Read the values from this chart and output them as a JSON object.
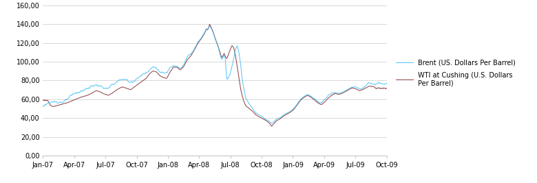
{
  "ylim": [
    0,
    160
  ],
  "yticks": [
    0,
    20,
    40,
    60,
    80,
    100,
    120,
    140,
    160
  ],
  "ytick_labels": [
    "0,00",
    "20,00",
    "40,00",
    "60,00",
    "80,00",
    "100,00",
    "120,00",
    "140,00",
    "160,00"
  ],
  "xtick_labels": [
    "Jan-07",
    "Apr-07",
    "Jul-07",
    "Oct-07",
    "Jan-08",
    "Apr-08",
    "Jul-08",
    "Oct-08",
    "Jan-09",
    "Apr-09",
    "Jul-09",
    "Oct-09"
  ],
  "brent_color": "#4FC3F7",
  "wti_color": "#8B3A3A",
  "background_color": "#FFFFFF",
  "legend_brent": "Brent (US. Dollars Per Barrel)",
  "legend_wti": "WTI at Cushing (U.S. Dollars\nPer Barrel)",
  "waypoints_brent": [
    [
      0.0,
      52
    ],
    [
      0.015,
      57
    ],
    [
      0.03,
      55
    ],
    [
      0.05,
      58
    ],
    [
      0.07,
      60
    ],
    [
      0.09,
      63
    ],
    [
      0.11,
      67
    ],
    [
      0.13,
      70
    ],
    [
      0.145,
      73
    ],
    [
      0.155,
      74
    ],
    [
      0.165,
      73
    ],
    [
      0.175,
      71
    ],
    [
      0.19,
      69
    ],
    [
      0.2,
      72
    ],
    [
      0.215,
      76
    ],
    [
      0.23,
      79
    ],
    [
      0.24,
      78
    ],
    [
      0.255,
      76
    ],
    [
      0.27,
      80
    ],
    [
      0.285,
      84
    ],
    [
      0.3,
      88
    ],
    [
      0.31,
      93
    ],
    [
      0.32,
      96
    ],
    [
      0.33,
      95
    ],
    [
      0.34,
      91
    ],
    [
      0.35,
      89
    ],
    [
      0.36,
      88
    ],
    [
      0.37,
      95
    ],
    [
      0.38,
      100
    ],
    [
      0.39,
      100
    ],
    [
      0.4,
      97
    ],
    [
      0.41,
      101
    ],
    [
      0.42,
      108
    ],
    [
      0.43,
      112
    ],
    [
      0.44,
      118
    ],
    [
      0.45,
      125
    ],
    [
      0.46,
      130
    ],
    [
      0.465,
      133
    ],
    [
      0.47,
      136
    ],
    [
      0.475,
      140
    ],
    [
      0.48,
      140
    ],
    [
      0.485,
      143
    ],
    [
      0.49,
      140
    ],
    [
      0.495,
      136
    ],
    [
      0.5,
      130
    ],
    [
      0.505,
      125
    ],
    [
      0.51,
      120
    ],
    [
      0.515,
      113
    ],
    [
      0.52,
      107
    ],
    [
      0.525,
      110
    ],
    [
      0.527,
      112
    ],
    [
      0.53,
      109
    ],
    [
      0.535,
      86
    ],
    [
      0.54,
      88
    ],
    [
      0.545,
      92
    ],
    [
      0.55,
      100
    ],
    [
      0.555,
      108
    ],
    [
      0.56,
      118
    ],
    [
      0.565,
      122
    ],
    [
      0.57,
      115
    ],
    [
      0.575,
      103
    ],
    [
      0.58,
      85
    ],
    [
      0.585,
      75
    ],
    [
      0.59,
      66
    ],
    [
      0.6,
      60
    ],
    [
      0.61,
      55
    ],
    [
      0.62,
      50
    ],
    [
      0.63,
      48
    ],
    [
      0.64,
      46
    ],
    [
      0.645,
      44
    ],
    [
      0.65,
      43
    ],
    [
      0.66,
      41
    ],
    [
      0.665,
      39
    ],
    [
      0.67,
      40
    ],
    [
      0.675,
      42
    ],
    [
      0.68,
      44
    ],
    [
      0.69,
      45
    ],
    [
      0.7,
      48
    ],
    [
      0.71,
      50
    ],
    [
      0.72,
      52
    ],
    [
      0.73,
      55
    ],
    [
      0.74,
      60
    ],
    [
      0.75,
      65
    ],
    [
      0.76,
      68
    ],
    [
      0.77,
      70
    ],
    [
      0.775,
      69
    ],
    [
      0.78,
      68
    ],
    [
      0.79,
      65
    ],
    [
      0.8,
      62
    ],
    [
      0.81,
      60
    ],
    [
      0.82,
      63
    ],
    [
      0.83,
      67
    ],
    [
      0.84,
      70
    ],
    [
      0.85,
      72
    ],
    [
      0.86,
      71
    ],
    [
      0.87,
      72
    ],
    [
      0.88,
      74
    ],
    [
      0.89,
      76
    ],
    [
      0.9,
      78
    ],
    [
      0.91,
      77
    ],
    [
      0.92,
      75
    ],
    [
      0.93,
      76
    ],
    [
      0.94,
      78
    ],
    [
      0.95,
      80
    ],
    [
      0.96,
      79
    ],
    [
      0.97,
      78
    ],
    [
      0.98,
      78
    ],
    [
      1.0,
      77
    ]
  ],
  "waypoints_wti": [
    [
      0.0,
      59
    ],
    [
      0.015,
      59
    ],
    [
      0.03,
      57
    ],
    [
      0.05,
      59
    ],
    [
      0.07,
      61
    ],
    [
      0.09,
      64
    ],
    [
      0.11,
      67
    ],
    [
      0.13,
      69
    ],
    [
      0.145,
      72
    ],
    [
      0.155,
      74
    ],
    [
      0.165,
      73
    ],
    [
      0.175,
      71
    ],
    [
      0.19,
      69
    ],
    [
      0.2,
      71
    ],
    [
      0.215,
      75
    ],
    [
      0.23,
      78
    ],
    [
      0.24,
      77
    ],
    [
      0.255,
      75
    ],
    [
      0.27,
      79
    ],
    [
      0.285,
      83
    ],
    [
      0.3,
      87
    ],
    [
      0.31,
      92
    ],
    [
      0.32,
      95
    ],
    [
      0.33,
      94
    ],
    [
      0.34,
      90
    ],
    [
      0.35,
      88
    ],
    [
      0.36,
      87
    ],
    [
      0.37,
      94
    ],
    [
      0.38,
      99
    ],
    [
      0.39,
      99
    ],
    [
      0.4,
      96
    ],
    [
      0.41,
      100
    ],
    [
      0.42,
      107
    ],
    [
      0.43,
      111
    ],
    [
      0.44,
      117
    ],
    [
      0.45,
      124
    ],
    [
      0.46,
      129
    ],
    [
      0.465,
      132
    ],
    [
      0.47,
      135
    ],
    [
      0.475,
      139
    ],
    [
      0.48,
      139
    ],
    [
      0.485,
      145
    ],
    [
      0.49,
      141
    ],
    [
      0.495,
      137
    ],
    [
      0.5,
      131
    ],
    [
      0.505,
      126
    ],
    [
      0.51,
      121
    ],
    [
      0.515,
      115
    ],
    [
      0.52,
      109
    ],
    [
      0.525,
      112
    ],
    [
      0.527,
      114
    ],
    [
      0.53,
      111
    ],
    [
      0.535,
      108
    ],
    [
      0.54,
      113
    ],
    [
      0.545,
      118
    ],
    [
      0.55,
      122
    ],
    [
      0.555,
      120
    ],
    [
      0.56,
      112
    ],
    [
      0.565,
      100
    ],
    [
      0.57,
      88
    ],
    [
      0.575,
      76
    ],
    [
      0.58,
      68
    ],
    [
      0.585,
      62
    ],
    [
      0.59,
      58
    ],
    [
      0.6,
      55
    ],
    [
      0.61,
      52
    ],
    [
      0.62,
      48
    ],
    [
      0.63,
      46
    ],
    [
      0.64,
      44
    ],
    [
      0.645,
      43
    ],
    [
      0.65,
      42
    ],
    [
      0.66,
      39
    ],
    [
      0.665,
      36
    ],
    [
      0.67,
      38
    ],
    [
      0.675,
      40
    ],
    [
      0.68,
      42
    ],
    [
      0.69,
      44
    ],
    [
      0.7,
      47
    ],
    [
      0.71,
      49
    ],
    [
      0.72,
      51
    ],
    [
      0.73,
      54
    ],
    [
      0.74,
      59
    ],
    [
      0.75,
      64
    ],
    [
      0.76,
      67
    ],
    [
      0.77,
      69
    ],
    [
      0.775,
      68
    ],
    [
      0.78,
      67
    ],
    [
      0.79,
      64
    ],
    [
      0.8,
      61
    ],
    [
      0.81,
      59
    ],
    [
      0.82,
      62
    ],
    [
      0.83,
      66
    ],
    [
      0.84,
      69
    ],
    [
      0.85,
      71
    ],
    [
      0.86,
      70
    ],
    [
      0.87,
      71
    ],
    [
      0.88,
      73
    ],
    [
      0.89,
      75
    ],
    [
      0.9,
      77
    ],
    [
      0.91,
      76
    ],
    [
      0.92,
      74
    ],
    [
      0.93,
      75
    ],
    [
      0.94,
      77
    ],
    [
      0.95,
      79
    ],
    [
      0.96,
      78
    ],
    [
      0.97,
      74
    ],
    [
      0.98,
      73
    ],
    [
      1.0,
      72
    ]
  ]
}
